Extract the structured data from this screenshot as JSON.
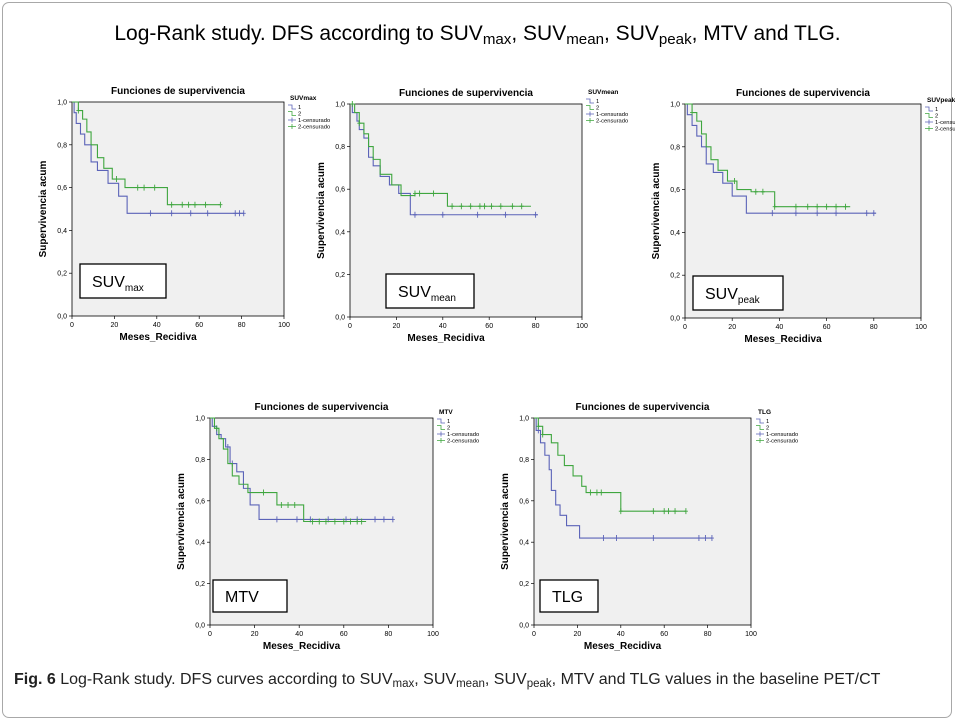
{
  "figure": {
    "title_parts": [
      {
        "t": "Log-Rank study. DFS according to SUV"
      },
      {
        "t": "max",
        "sub": true
      },
      {
        "t": ", SUV"
      },
      {
        "t": "mean",
        "sub": true
      },
      {
        "t": ", SUV"
      },
      {
        "t": "peak",
        "sub": true
      },
      {
        "t": ", MTV and TLG."
      }
    ],
    "caption_label": "Fig. 6",
    "caption_parts": [
      {
        "t": "  Log-Rank study. DFS curves according to SUV"
      },
      {
        "t": "max",
        "sub": true
      },
      {
        "t": ", SUV"
      },
      {
        "t": "mean",
        "sub": true
      },
      {
        "t": ", SUV"
      },
      {
        "t": "peak",
        "sub": true
      },
      {
        "t": ", MTV and TLG values in the baseline PET/CT"
      }
    ]
  },
  "chart_data": [
    {
      "type": "line",
      "step": true,
      "title": "Funciones de supervivencia",
      "xlabel": "Meses_Recidiva",
      "ylabel": "Supervivencia acum",
      "xlim": [
        0,
        100
      ],
      "ylim": [
        0,
        1
      ],
      "xticks": [
        "0",
        "20",
        "40",
        "60",
        "80",
        "100"
      ],
      "yticks": [
        "0,0",
        "0,2",
        "0,4",
        "0,6",
        "0,8",
        "1,0"
      ],
      "legend_title": "SUVmax",
      "legend": [
        "1",
        "2",
        "1-censurado",
        "2-censurado"
      ],
      "inset_label": {
        "base": "SUV",
        "sub": "max"
      },
      "series": [
        {
          "name": "1",
          "color": "#5b63b8",
          "x": [
            0,
            1,
            2,
            4,
            6,
            9,
            12,
            17,
            22,
            26,
            81
          ],
          "y": [
            1.0,
            0.95,
            0.9,
            0.85,
            0.8,
            0.72,
            0.68,
            0.62,
            0.56,
            0.48,
            0.48
          ],
          "censored_x": [
            37,
            47,
            56,
            64,
            77,
            79,
            81
          ]
        },
        {
          "name": "2",
          "color": "#3fa63f",
          "x": [
            0,
            3,
            5,
            7,
            9,
            12,
            15,
            19,
            25,
            30,
            45,
            70
          ],
          "y": [
            1.0,
            0.96,
            0.92,
            0.86,
            0.8,
            0.74,
            0.69,
            0.64,
            0.6,
            0.6,
            0.52,
            0.52
          ],
          "censored_x": [
            3,
            21,
            31,
            34,
            39,
            47,
            52,
            55,
            58,
            63,
            70
          ]
        }
      ]
    },
    {
      "type": "line",
      "step": true,
      "title": "Funciones de supervivencia",
      "xlabel": "Meses_Recidiva",
      "ylabel": "Supervivencia acum",
      "xlim": [
        0,
        100
      ],
      "ylim": [
        0,
        1
      ],
      "xticks": [
        "0",
        "20",
        "40",
        "60",
        "80",
        "100"
      ],
      "yticks": [
        "0,0",
        "0,2",
        "0,4",
        "0,6",
        "0,8",
        "1,0"
      ],
      "legend_title": "SUVmean",
      "legend": [
        "1",
        "2",
        "1-censurado",
        "2-censurado"
      ],
      "inset_label": {
        "base": "SUV",
        "sub": "mean"
      },
      "series": [
        {
          "name": "1",
          "color": "#5b63b8",
          "x": [
            0,
            1,
            3,
            4,
            6,
            8,
            10,
            13,
            17,
            21,
            26,
            81
          ],
          "y": [
            1.0,
            0.96,
            0.92,
            0.88,
            0.84,
            0.75,
            0.71,
            0.66,
            0.62,
            0.58,
            0.48,
            0.48
          ],
          "censored_x": [
            28,
            40,
            55,
            67,
            80
          ]
        },
        {
          "name": "2",
          "color": "#3fa63f",
          "x": [
            0,
            2,
            4,
            6,
            8,
            10,
            13,
            18,
            22,
            28,
            42,
            78
          ],
          "y": [
            1.0,
            0.96,
            0.91,
            0.86,
            0.8,
            0.74,
            0.67,
            0.62,
            0.57,
            0.58,
            0.52,
            0.52
          ],
          "censored_x": [
            1,
            4,
            28,
            30,
            36,
            44,
            48,
            52,
            56,
            58,
            61,
            65,
            70,
            74
          ]
        }
      ]
    },
    {
      "type": "line",
      "step": true,
      "title": "Funciones de supervivencia",
      "xlabel": "Meses_Recidiva",
      "ylabel": "Supervivencia acum",
      "xlim": [
        0,
        100
      ],
      "ylim": [
        0,
        1
      ],
      "xticks": [
        "0",
        "20",
        "40",
        "60",
        "80",
        "100"
      ],
      "yticks": [
        "0,0",
        "0,2",
        "0,4",
        "0,6",
        "0,8",
        "1,0"
      ],
      "legend_title": "SUVpeak",
      "legend": [
        "1",
        "2",
        "1-censurado",
        "2-censurado"
      ],
      "inset_label": {
        "base": "SUV",
        "sub": "peak"
      },
      "series": [
        {
          "name": "1",
          "color": "#5b63b8",
          "x": [
            0,
            1,
            3,
            5,
            7,
            9,
            12,
            16,
            20,
            26,
            81
          ],
          "y": [
            1.0,
            0.95,
            0.9,
            0.85,
            0.8,
            0.72,
            0.68,
            0.63,
            0.57,
            0.49,
            0.49
          ],
          "censored_x": [
            37,
            47,
            56,
            64,
            77,
            80
          ]
        },
        {
          "name": "2",
          "color": "#3fa63f",
          "x": [
            0,
            3,
            5,
            7,
            9,
            11,
            14,
            18,
            22,
            28,
            38,
            70
          ],
          "y": [
            1.0,
            0.96,
            0.92,
            0.86,
            0.8,
            0.74,
            0.69,
            0.64,
            0.6,
            0.59,
            0.52,
            0.52
          ],
          "censored_x": [
            3,
            21,
            30,
            33,
            38,
            47,
            52,
            56,
            60,
            64,
            68
          ]
        }
      ]
    },
    {
      "type": "line",
      "step": true,
      "title": "Funciones de supervivencia",
      "xlabel": "Meses_Recidiva",
      "ylabel": "Supervivencia acum",
      "xlim": [
        0,
        100
      ],
      "ylim": [
        0,
        1
      ],
      "xticks": [
        "0",
        "20",
        "40",
        "60",
        "80",
        "100"
      ],
      "yticks": [
        "0,0",
        "0,2",
        "0,4",
        "0,6",
        "0,8",
        "1,0"
      ],
      "legend_title": "MTV",
      "legend": [
        "1",
        "2",
        "1-censurado",
        "2-censurado"
      ],
      "inset_label": {
        "base": "MTV",
        "sub": ""
      },
      "series": [
        {
          "name": "1",
          "color": "#5b63b8",
          "x": [
            0,
            1,
            3,
            5,
            7,
            9,
            12,
            15,
            18,
            22,
            82
          ],
          "y": [
            1.0,
            0.96,
            0.92,
            0.9,
            0.86,
            0.78,
            0.74,
            0.66,
            0.58,
            0.51,
            0.51
          ],
          "censored_x": [
            4,
            8,
            10,
            30,
            39,
            45,
            53,
            61,
            66,
            74,
            78,
            82
          ]
        },
        {
          "name": "2",
          "color": "#3fa63f",
          "x": [
            0,
            2,
            4,
            6,
            8,
            10,
            13,
            17,
            22,
            30,
            42,
            70
          ],
          "y": [
            1.0,
            0.95,
            0.9,
            0.85,
            0.78,
            0.72,
            0.68,
            0.64,
            0.64,
            0.58,
            0.5,
            0.5
          ],
          "censored_x": [
            3,
            24,
            32,
            35,
            38,
            46,
            49,
            52,
            56,
            60,
            63,
            66,
            68
          ]
        }
      ]
    },
    {
      "type": "line",
      "step": true,
      "title": "Funciones de supervivencia",
      "xlabel": "Meses_Recidiva",
      "ylabel": "Supervivencia acum",
      "xlim": [
        0,
        100
      ],
      "ylim": [
        0,
        1
      ],
      "xticks": [
        "0",
        "20",
        "40",
        "60",
        "80",
        "100"
      ],
      "yticks": [
        "0,0",
        "0,2",
        "0,4",
        "0,6",
        "0,8",
        "1,0"
      ],
      "legend_title": "TLG",
      "legend": [
        "1",
        "2",
        "1-censurado",
        "2-censurado"
      ],
      "inset_label": {
        "base": "TLG",
        "sub": ""
      },
      "series": [
        {
          "name": "1",
          "color": "#5b63b8",
          "x": [
            0,
            1,
            3,
            5,
            7,
            8,
            10,
            12,
            15,
            21,
            82
          ],
          "y": [
            1.0,
            0.94,
            0.88,
            0.82,
            0.75,
            0.65,
            0.58,
            0.53,
            0.48,
            0.42,
            0.42
          ],
          "censored_x": [
            2,
            32,
            38,
            55,
            76,
            79,
            82
          ]
        },
        {
          "name": "2",
          "color": "#3fa63f",
          "x": [
            0,
            2,
            4,
            8,
            11,
            14,
            18,
            22,
            24,
            40,
            70
          ],
          "y": [
            1.0,
            0.96,
            0.92,
            0.88,
            0.82,
            0.77,
            0.72,
            0.67,
            0.64,
            0.55,
            0.55
          ],
          "censored_x": [
            2,
            4,
            26,
            29,
            31,
            40,
            55,
            60,
            62,
            65,
            70
          ]
        }
      ]
    }
  ]
}
